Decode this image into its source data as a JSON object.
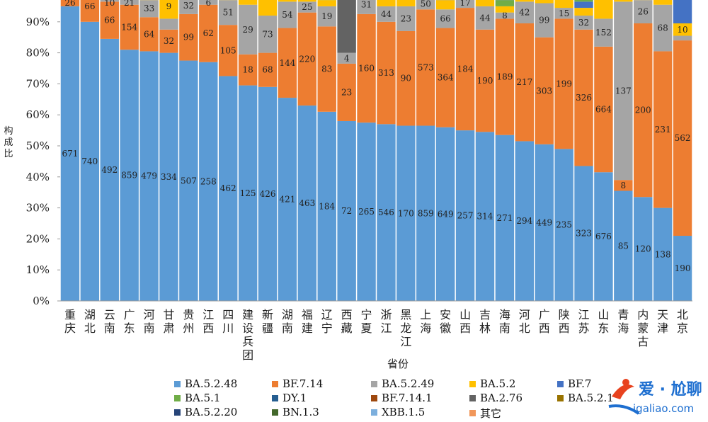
{
  "chart_data": {
    "type": "stacked-bar-100",
    "xlabel": "省份",
    "ylabel": "构成比",
    "ytick_labels": [
      "0%",
      "10%",
      "20%",
      "30%",
      "40%",
      "50%",
      "60%",
      "70%",
      "80%",
      "90%"
    ],
    "ylim": [
      0,
      100
    ],
    "categories": [
      "重庆",
      "湖北",
      "云南",
      "广东",
      "河南",
      "甘肃",
      "贵州",
      "江西",
      "四川",
      "建设兵团",
      "新疆",
      "湖南",
      "福建",
      "辽宁",
      "西藏",
      "宁夏",
      "浙江",
      "黑龙江",
      "上海",
      "安徽",
      "山西",
      "吉林",
      "海南",
      "河北",
      "广西",
      "陕西",
      "江苏",
      "山东",
      "青海",
      "内蒙古",
      "天津",
      "北京"
    ],
    "colors": {
      "BA.5.2.48": "#5b9bd5",
      "BF.7.14": "#ed7d31",
      "BA.5.2.49": "#a5a5a5",
      "BA.5.2": "#ffc000",
      "BF.7": "#4472c4",
      "BA.5.1": "#70ad47",
      "DY.1": "#255e91",
      "BF.7.14.1": "#9e480e",
      "BA.2.76": "#636363",
      "BA.5.2.1": "#997300",
      "BA.5.2.20": "#264478",
      "BN.1.3": "#43682b",
      "XBB.1.5": "#7cafdd",
      "其它": "#f1975a"
    },
    "legend": [
      "BA.5.2.48",
      "BF.7.14",
      "BA.5.2.49",
      "BA.5.2",
      "BF.7",
      "BA.5.1",
      "DY.1",
      "BF.7.14.1",
      "BA.2.76",
      "BA.5.2.1",
      "BA.5.2.20",
      "BN.1.3",
      "XBB.1.5",
      "其它"
    ],
    "bars": [
      {
        "BA.5.2.48": 95,
        "BF.7.14": 5
      },
      {
        "BA.5.2.48": 90,
        "BF.7.14": 10
      },
      {
        "BA.5.2.48": 84.5,
        "BF.7.14": 12,
        "BA.5.2.49": 2,
        "BA.5.2": 1.5
      },
      {
        "BA.5.2.48": 81,
        "BF.7.14": 14.5,
        "BA.5.2.49": 2,
        "BA.5.2": 1.5,
        "BA.5.1": 1
      },
      {
        "BA.5.2.48": 80.5,
        "BF.7.14": 11,
        "BA.5.2.49": 5.5,
        "BA.5.2": 2,
        "BA.5.1": 1
      },
      {
        "BA.5.2.48": 80,
        "BF.7.14": 7.5,
        "BA.5.2.49": 3.5,
        "BA.5.2": 8,
        "BA.5.1": 1
      },
      {
        "BA.5.2.48": 77.5,
        "BF.7.14": 15,
        "BA.5.2.49": 5.5,
        "BA.5.2": 2
      },
      {
        "BA.5.2.48": 77,
        "BF.7.14": 18.5,
        "BA.5.2.49": 2.5,
        "BA.5.2": 2
      },
      {
        "BA.5.2.48": 72.5,
        "BF.7.14": 16.5,
        "BA.5.2.49": 8,
        "BA.5.2": 2,
        "BA.5.1": 1
      },
      {
        "BA.5.2.48": 69.5,
        "BF.7.14": 10,
        "BA.5.2.49": 16,
        "BA.5.2": 3.5,
        "BF.7": 1
      },
      {
        "BA.5.2.48": 69,
        "BF.7.14": 11,
        "BA.5.2.49": 12,
        "BA.5.2": 8
      },
      {
        "BA.5.2.48": 65.5,
        "BF.7.14": 22.5,
        "BA.5.2.49": 8.5,
        "BA.5.2": 2,
        "BA.5.1": 1.5
      },
      {
        "BA.5.2.48": 63,
        "BF.7.14": 30,
        "BA.5.2.49": 3.5,
        "BA.5.2": 2,
        "BA.5.1": 1.5
      },
      {
        "BA.5.2.48": 61,
        "BF.7.14": 27.5,
        "BA.5.2.49": 6.5,
        "BA.5.2": 2,
        "BA.5.1": 2,
        "BN.1.3": 1
      },
      {
        "BA.5.2.48": 58,
        "BF.7.14": 18.5,
        "BA.5.2.49": 3.5,
        "BA.2.76": 20
      },
      {
        "BA.5.2.48": 57.5,
        "BF.7.14": 35,
        "BA.5.2.49": 6,
        "BA.5.2": 1.5
      },
      {
        "BA.5.2.48": 57,
        "BF.7.14": 33,
        "BA.5.2.49": 5,
        "BA.5.2": 3,
        "BA.5.1": 2
      },
      {
        "BA.5.2.48": 56.5,
        "BF.7.14": 30.5,
        "BA.5.2.49": 8,
        "BA.5.2": 3,
        "BA.5.1": 2
      },
      {
        "BA.5.2.48": 56.5,
        "BF.7.14": 37.5,
        "BA.5.2.49": 3.5,
        "BA.5.2": 2.5
      },
      {
        "BA.5.2.48": 56,
        "BF.7.14": 32,
        "BA.5.2.49": 6,
        "BA.5.2": 3,
        "BF.7": 1.5,
        "BA.5.1": 1.5
      },
      {
        "BA.5.2.48": 55,
        "BF.7.14": 39.5,
        "BA.5.2.49": 4,
        "BA.5.2": 1.5
      },
      {
        "BA.5.2.48": 54.5,
        "BF.7.14": 33,
        "BA.5.2.49": 7.5,
        "BA.5.2": 3,
        "BA.5.1": 2
      },
      {
        "BA.5.2.48": 53.5,
        "BF.7.14": 37.5,
        "BA.5.2.49": 2,
        "BA.5.2": 2,
        "DY.1": 3,
        "BA.5.1": 2
      },
      {
        "BA.5.2.48": 51.5,
        "BF.7.14": 38,
        "BA.5.2.49": 7,
        "BA.5.2": 2,
        "BA.5.1": 1.5
      },
      {
        "BA.5.2.48": 50.5,
        "BF.7.14": 34.5,
        "BA.5.2.49": 11,
        "BA.5.2": 2,
        "BA.5.1": 2
      },
      {
        "BA.5.2.48": 49,
        "BF.7.14": 42,
        "BA.5.2.49": 3.5,
        "BA.5.2": 3,
        "BA.5.1": 2.5
      },
      {
        "BA.5.2.48": 43.5,
        "BF.7.14": 44,
        "BA.5.2.49": 4.5,
        "BA.5.2": 2.5,
        "BF.7": 2,
        "DY.1": 2,
        "BA.5.1": 1.5
      },
      {
        "BA.5.2.48": 41.5,
        "BF.7.14": 40.5,
        "BA.5.2.49": 9,
        "BA.5.2": 8,
        "BA.5.1": 1
      },
      {
        "BA.5.2.48": 35.5,
        "BF.7.14": 3.5,
        "BA.5.2.49": 57.5,
        "BA.5.2": 1.5,
        "BA.5.1": 2
      },
      {
        "BA.5.2.48": 33.5,
        "BF.7.14": 56,
        "BA.5.2.49": 7.5,
        "BA.5.2": 2,
        "BA.5.1": 1
      },
      {
        "BA.5.2.48": 30,
        "BF.7.14": 50.5,
        "BA.5.2.49": 15,
        "BA.5.2": 3,
        "BA.5.1": 1.5
      },
      {
        "BA.5.2.48": 21,
        "BF.7.14": 63,
        "BA.5.2.49": 1.5,
        "BA.5.2": 4,
        "BF.7": 8,
        "BA.5.1": 2.5
      }
    ],
    "data_labels": [
      {
        "BA.5.2.48": "671",
        "BF.7.14": "26"
      },
      {
        "BA.5.2.48": "740",
        "BF.7.14": "66"
      },
      {
        "BA.5.2.48": "492",
        "BF.7.14": "66",
        "BA.5.2.49": "10"
      },
      {
        "BA.5.2.48": "859",
        "BF.7.14": "154",
        "BA.5.2.49": "21"
      },
      {
        "BA.5.2.48": "479",
        "BF.7.14": "64",
        "BA.5.2.49": "33"
      },
      {
        "BA.5.2.48": "334",
        "BF.7.14": "32",
        "BA.5.2": "9"
      },
      {
        "BA.5.2.48": "507",
        "BF.7.14": "99",
        "BA.5.2.49": "32"
      },
      {
        "BA.5.2.48": "258",
        "BF.7.14": "62",
        "BA.5.2.49": "6"
      },
      {
        "BA.5.2.48": "462",
        "BF.7.14": "105",
        "BA.5.2.49": "51"
      },
      {
        "BA.5.2.48": "125",
        "BF.7.14": "18",
        "BA.5.2.49": "29"
      },
      {
        "BA.5.2.48": "426",
        "BF.7.14": "68",
        "BA.5.2.49": "73"
      },
      {
        "BA.5.2.48": "421",
        "BF.7.14": "144",
        "BA.5.2.49": "54"
      },
      {
        "BA.5.2.48": "463",
        "BF.7.14": "220",
        "BA.5.2.49": "25"
      },
      {
        "BA.5.2.48": "184",
        "BF.7.14": "83",
        "BA.5.2.49": "19"
      },
      {
        "BA.5.2.48": "72",
        "BF.7.14": "23",
        "BA.5.2.49": "4"
      },
      {
        "BA.5.2.48": "265",
        "BF.7.14": "160",
        "BA.5.2.49": "31"
      },
      {
        "BA.5.2.48": "546",
        "BF.7.14": "313",
        "BA.5.2.49": "44"
      },
      {
        "BA.5.2.48": "170",
        "BF.7.14": "90",
        "BA.5.2.49": "23"
      },
      {
        "BA.5.2.48": "859",
        "BF.7.14": "573",
        "BA.5.2.49": "50"
      },
      {
        "BA.5.2.48": "649",
        "BF.7.14": "364",
        "BA.5.2.49": "66"
      },
      {
        "BA.5.2.48": "257",
        "BF.7.14": "184",
        "BA.5.2.49": "17"
      },
      {
        "BA.5.2.48": "314",
        "BF.7.14": "190",
        "BA.5.2.49": "44"
      },
      {
        "BA.5.2.48": "271",
        "BF.7.14": "189",
        "BA.5.2.49": "8"
      },
      {
        "BA.5.2.48": "294",
        "BF.7.14": "217",
        "BA.5.2.49": "42"
      },
      {
        "BA.5.2.48": "449",
        "BF.7.14": "303",
        "BA.5.2.49": "99"
      },
      {
        "BA.5.2.48": "235",
        "BF.7.14": "199",
        "BA.5.2.49": "15"
      },
      {
        "BA.5.2.48": "323",
        "BF.7.14": "326",
        "BA.5.2.49": "32"
      },
      {
        "BA.5.2.48": "676",
        "BF.7.14": "664",
        "BA.5.2.49": "152"
      },
      {
        "BA.5.2.48": "85",
        "BF.7.14": "8",
        "BA.5.2.49": "137"
      },
      {
        "BA.5.2.48": "120",
        "BF.7.14": "200",
        "BA.5.2.49": "26"
      },
      {
        "BA.5.2.48": "138",
        "BF.7.14": "231",
        "BA.5.2.49": "68"
      },
      {
        "BA.5.2.48": "190",
        "BF.7.14": "562",
        "BA.5.2": "10"
      }
    ]
  },
  "watermark": {
    "brand": "爱 · 尬聊",
    "url": "igaliao.com"
  }
}
